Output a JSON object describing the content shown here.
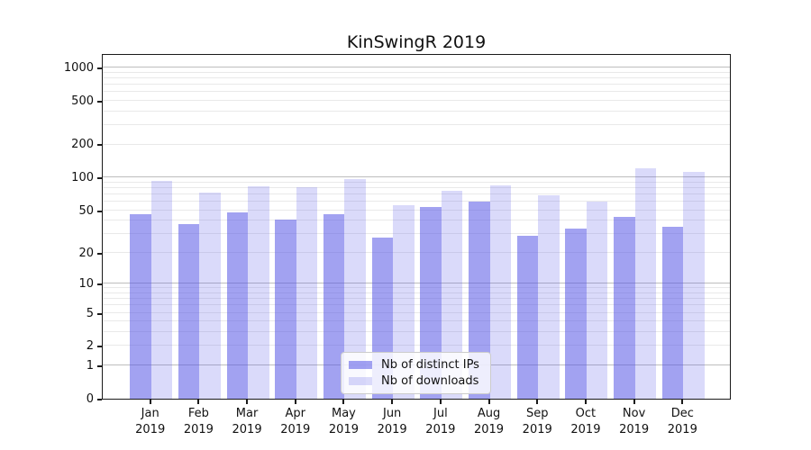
{
  "title": "KinSwingR 2019",
  "chart_data": {
    "type": "bar",
    "title": "KinSwingR 2019",
    "categories": [
      "Jan 2019",
      "Feb 2019",
      "Mar 2019",
      "Apr 2019",
      "May 2019",
      "Jun 2019",
      "Jul 2019",
      "Aug 2019",
      "Sep 2019",
      "Oct 2019",
      "Nov 2019",
      "Dec 2019"
    ],
    "series": [
      {
        "name": "Nb of distinct IPs",
        "values": [
          46,
          37,
          48,
          41,
          46,
          28,
          54,
          60,
          29,
          34,
          43,
          35
        ],
        "color": "rgba(85,85,230,0.55)"
      },
      {
        "name": "Nb of downloads",
        "values": [
          93,
          73,
          83,
          82,
          96,
          56,
          76,
          85,
          68,
          60,
          122,
          112
        ],
        "color": "rgba(85,85,230,0.22)"
      }
    ],
    "y_ticks": [
      0,
      1,
      2,
      5,
      10,
      20,
      50,
      100,
      200,
      500,
      1000
    ],
    "y_major_gridlines": [
      1,
      10,
      100,
      1000
    ],
    "yscale": "log10(value+1)",
    "ylim": [
      0,
      1350
    ],
    "grid": "on",
    "legend_position": "lower center",
    "colors": {
      "bar_base": "#5555e6",
      "major_grid": "#bdbdbd",
      "minor_grid": "#e9e9e9",
      "spine": "#1a1a1a"
    }
  }
}
